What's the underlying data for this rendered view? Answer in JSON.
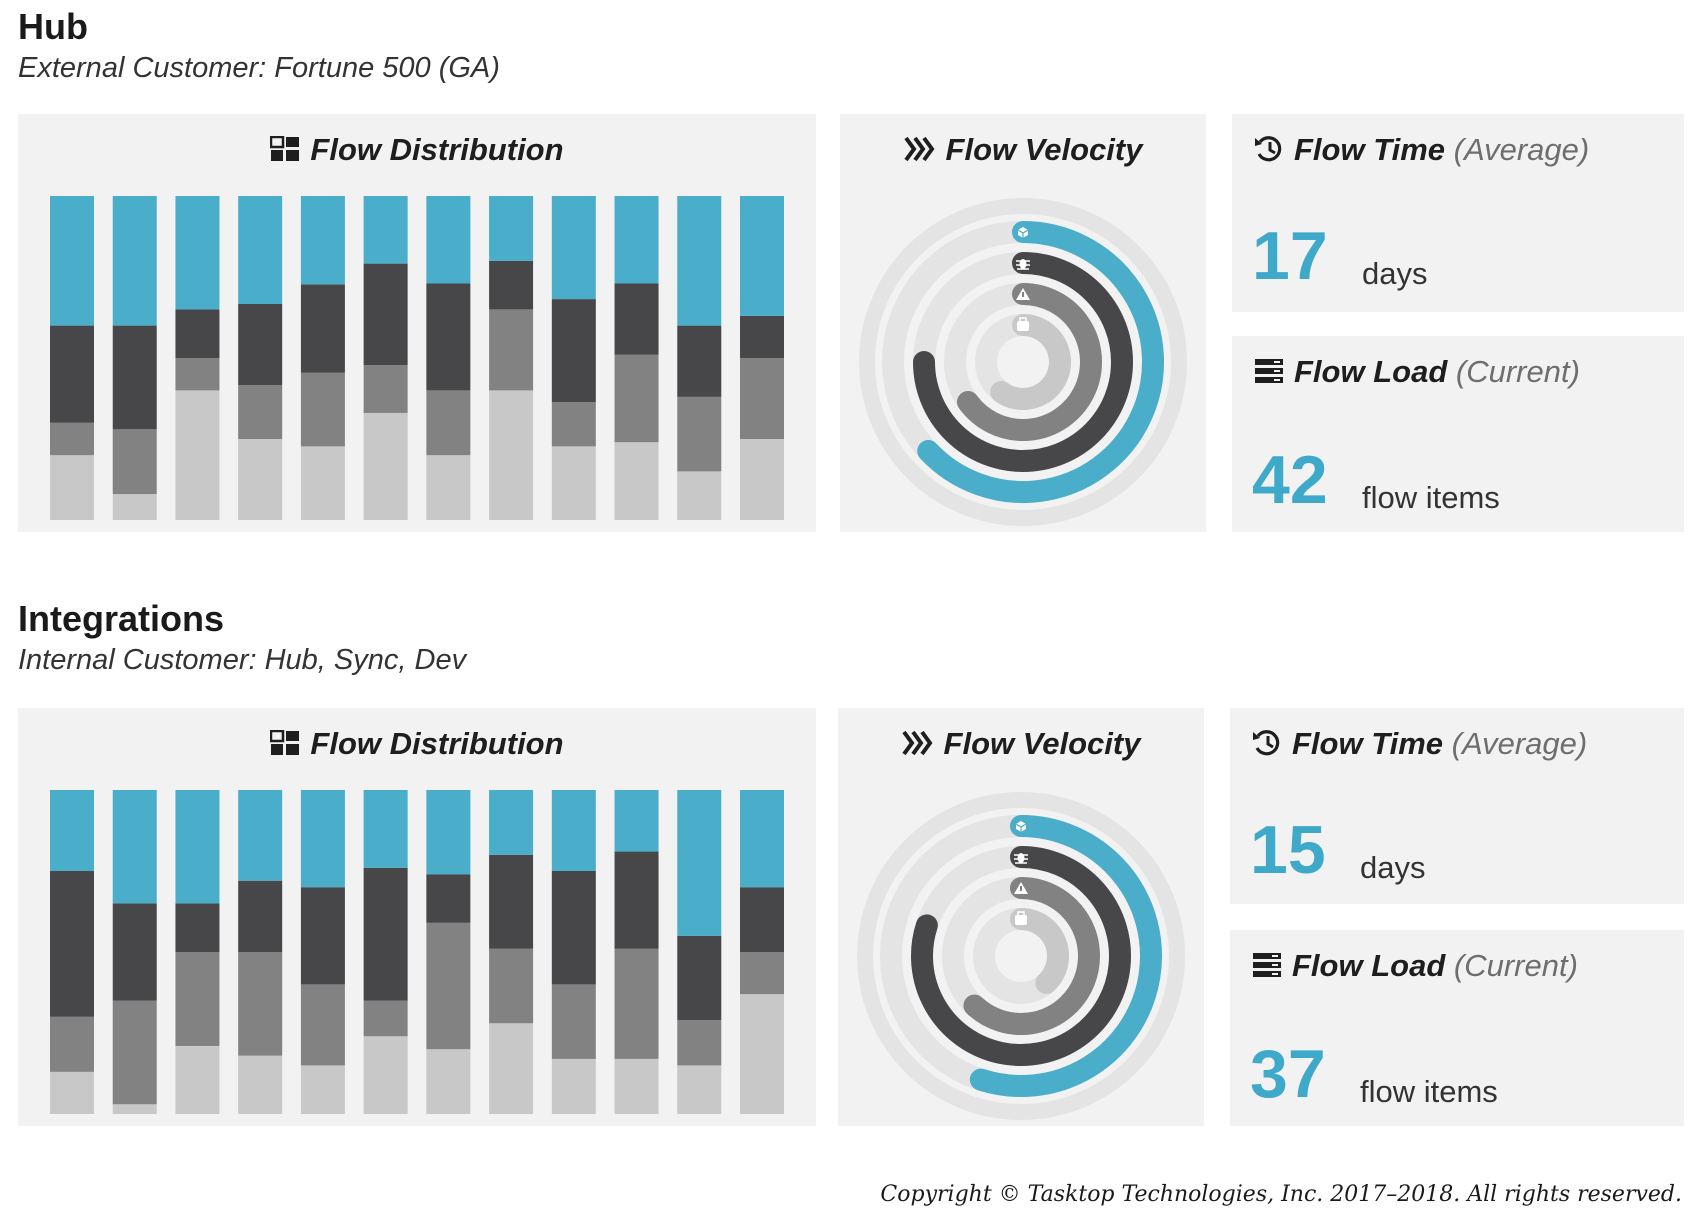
{
  "sections": [
    {
      "title": "Hub",
      "subtitle": "External Customer: Fortune 500 (GA)",
      "distribution": {
        "title": "Flow Distribution",
        "icon": "grid-icon"
      },
      "velocity": {
        "title": "Flow Velocity",
        "icon": "chevrons-icon"
      },
      "flow_time": {
        "title": "Flow Time",
        "qualifier": "(Average)",
        "value": "17",
        "unit": "days",
        "icon": "history-icon"
      },
      "flow_load": {
        "title": "Flow Load",
        "qualifier": "(Current)",
        "value": "42",
        "unit": "flow items",
        "icon": "stack-icon"
      }
    },
    {
      "title": "Integrations",
      "subtitle": "Internal Customer: Hub, Sync, Dev",
      "distribution": {
        "title": "Flow Distribution",
        "icon": "grid-icon"
      },
      "velocity": {
        "title": "Flow Velocity",
        "icon": "chevrons-icon"
      },
      "flow_time": {
        "title": "Flow Time",
        "qualifier": "(Average)",
        "value": "15",
        "unit": "days",
        "icon": "history-icon"
      },
      "flow_load": {
        "title": "Flow Load",
        "qualifier": "(Current)",
        "value": "37",
        "unit": "flow items",
        "icon": "stack-icon"
      }
    }
  ],
  "chart_data": [
    {
      "type": "bar",
      "stacked": true,
      "normalized": true,
      "title": "Flow Distribution",
      "series": [
        {
          "values": [
            20,
            10,
            40,
            30,
            25,
            38,
            20,
            40,
            25,
            24,
            15,
            25
          ]
        },
        {
          "values": [
            10,
            25,
            10,
            20,
            25,
            17,
            20,
            25,
            15,
            27,
            23,
            25
          ]
        },
        {
          "values": [
            30,
            40,
            15,
            30,
            30,
            36,
            33,
            15,
            35,
            22,
            22,
            13
          ]
        },
        {
          "values": [
            40,
            50,
            35,
            40,
            30,
            24,
            27,
            20,
            35,
            27,
            40,
            37
          ]
        }
      ],
      "colors": [
        "#c8c8c8",
        "#828282",
        "#474749",
        "#4aadca"
      ]
    },
    {
      "type": "bar",
      "stacked": true,
      "normalized": true,
      "title": "Flow Distribution",
      "series": [
        {
          "values": [
            13,
            3,
            21,
            18,
            15,
            24,
            20,
            28,
            17,
            17,
            15,
            37
          ]
        },
        {
          "values": [
            17,
            32,
            29,
            32,
            25,
            11,
            39,
            23,
            23,
            34,
            14,
            13
          ]
        },
        {
          "values": [
            45,
            30,
            15,
            22,
            30,
            41,
            15,
            29,
            35,
            30,
            26,
            20
          ]
        },
        {
          "values": [
            25,
            35,
            35,
            28,
            30,
            24,
            26,
            20,
            25,
            19,
            45,
            30
          ]
        }
      ],
      "colors": [
        "#c8c8c8",
        "#828282",
        "#474749",
        "#4aadca"
      ]
    },
    {
      "type": "radial-bar",
      "title": "Flow Velocity",
      "categories": [
        "feature",
        "defect",
        "risk",
        "debt"
      ],
      "category_icons": [
        "cube-icon",
        "bug-icon",
        "warning-icon",
        "debt-icon"
      ],
      "values": [
        0.63,
        0.75,
        0.65,
        0.6
      ],
      "colors": [
        "#4aadca",
        "#474749",
        "#828282",
        "#c8c8c8"
      ]
    },
    {
      "type": "radial-bar",
      "title": "Flow Velocity",
      "categories": [
        "feature",
        "defect",
        "risk",
        "debt"
      ],
      "category_icons": [
        "cube-icon",
        "bug-icon",
        "warning-icon",
        "debt-icon"
      ],
      "values": [
        0.55,
        0.8,
        0.62,
        0.38
      ],
      "colors": [
        "#4aadca",
        "#474749",
        "#828282",
        "#c8c8c8"
      ]
    }
  ],
  "copyright": "Copyright © Tasktop Technologies, Inc. 2017–2018. All rights reserved."
}
